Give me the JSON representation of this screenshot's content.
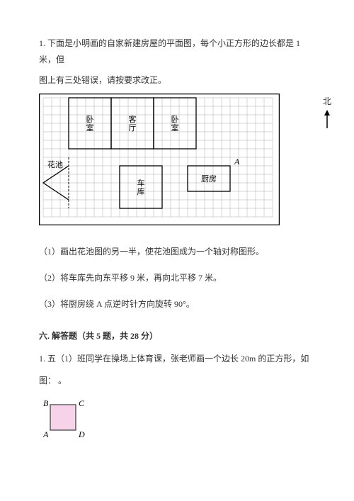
{
  "problem1": {
    "number": "1.",
    "intro_line1": "下面是小明画的自家新建房屋的平面图，每个小正方形的边长都是 1 米，但",
    "intro_line2": "图上有三处错误，请按要求改正。",
    "north_label": "北",
    "rooms": {
      "bedroom1": "卧\n室",
      "living_room": "客\n厅",
      "bedroom2": "卧\n室",
      "garden": "花池",
      "garage": "车\n库",
      "kitchen": "厨房",
      "point_a": "A"
    },
    "grid": {
      "outer_w": 340,
      "outer_h": 186,
      "cell": 12,
      "stroke": "#999999",
      "border": "#000000"
    },
    "sub1": "（1）画出花池图的另一半，使花池图成为一个轴对称图形。",
    "sub2": "（2）将车库先向东平移 9 米，再向北平移 7 米。",
    "sub3": "（3）将厨房绕 A 点逆时针方向旋转 90°。"
  },
  "section6": {
    "header": "六. 解答题（共 5 题，共 28 分）",
    "q1_line1": "1. 五（1）班同学在操场上体育课，张老师画一个边长 20m 的正方形，如",
    "q1_line2": "图：  。",
    "square": {
      "labels": {
        "B": "B",
        "C": "C",
        "A": "A",
        "D": "D"
      },
      "fill": "#f6d3e8",
      "stroke": "#3a3a3a",
      "size": 36
    }
  }
}
